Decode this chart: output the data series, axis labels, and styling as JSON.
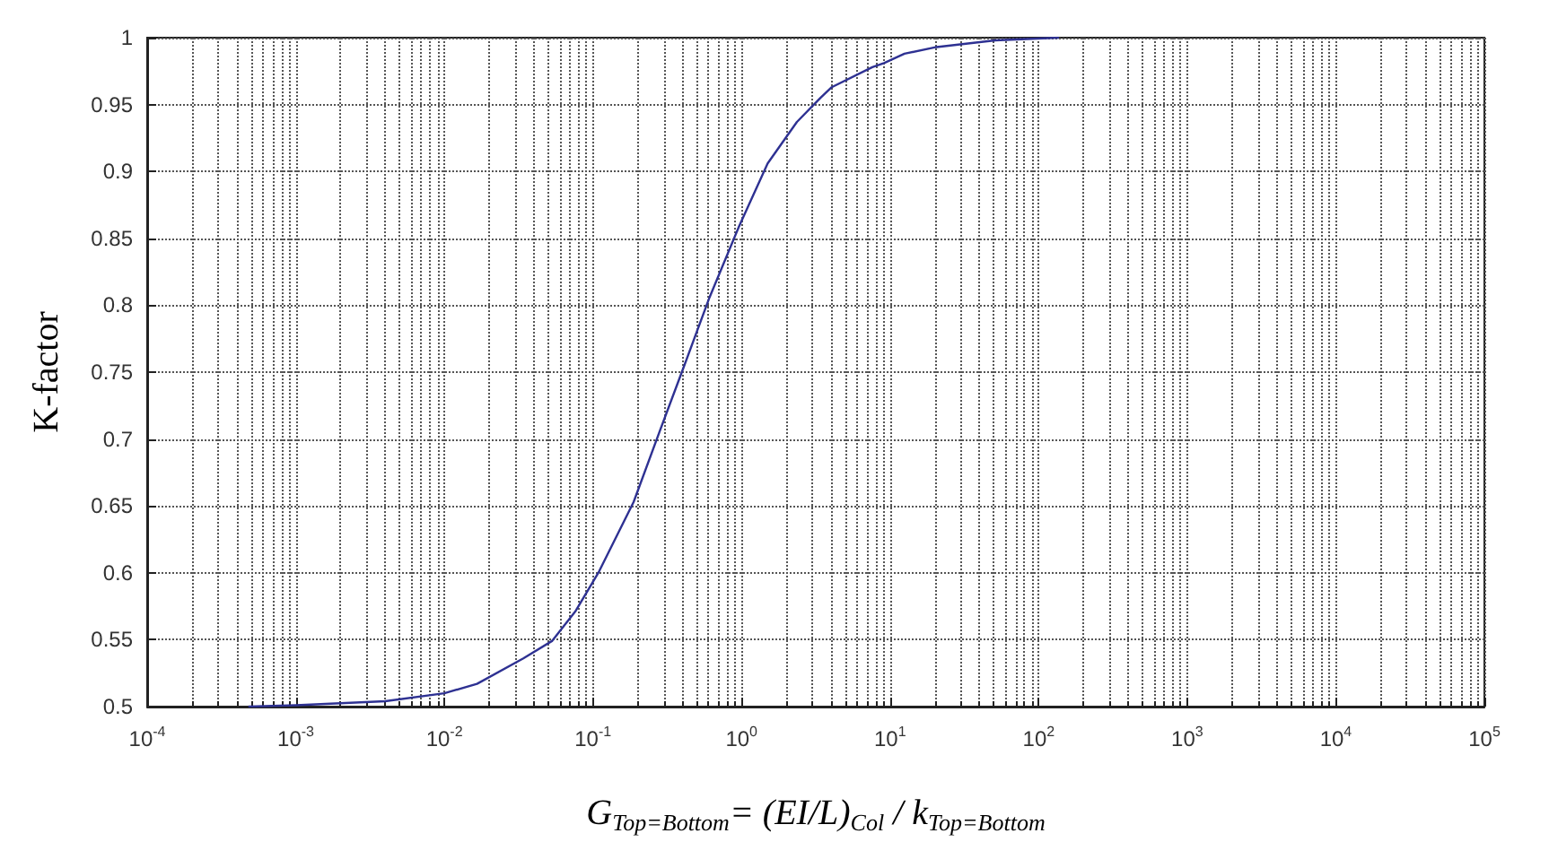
{
  "chart_data": {
    "type": "line",
    "xlabel": "G$_{Top=Bottom}$= (EI/L)$_{Col}$ / k$_{Top=Bottom}$",
    "ylabel": "K-factor",
    "log": "x",
    "grid": true,
    "line_style": "solid",
    "marker": "none",
    "xlim": [
      0.0001,
      100000
    ],
    "xticks": [
      {
        "value": 0.0001,
        "label": "10$^{-4}$"
      },
      {
        "value": 0.001,
        "label": "10$^{-3}$"
      },
      {
        "value": 0.01,
        "label": "10$^{-2}$"
      },
      {
        "value": 0.1,
        "label": "10$^{-1}$"
      },
      {
        "value": 1,
        "label": "10$^{0}$"
      },
      {
        "value": 10,
        "label": "10$^{1}$"
      },
      {
        "value": 100,
        "label": "10$^{2}$"
      },
      {
        "value": 1000,
        "label": "10$^{3}$"
      },
      {
        "value": 10000,
        "label": "10$^{4}$"
      },
      {
        "value": 100000,
        "label": "10$^{5}$"
      }
    ],
    "ylim": [
      0.5,
      1
    ],
    "yticks": [
      0.5,
      0.55,
      0.6,
      0.65,
      0.7,
      0.75,
      0.8,
      0.85,
      0.9,
      0.95,
      1
    ],
    "series": [
      {
        "color": "#2e3192",
        "x": [
          0.00048,
          0.001,
          0.004,
          0.01,
          0.0166,
          0.034,
          0.053,
          0.076,
          0.11,
          0.188,
          0.282,
          0.406,
          0.61,
          0.955,
          1.5,
          2.36,
          3.4,
          4.05,
          7.6,
          9.1,
          12.5,
          20.6,
          51,
          137
        ],
        "values": [
          0.5,
          0.501,
          0.504,
          0.51,
          0.517,
          0.536,
          0.549,
          0.571,
          0.601,
          0.653,
          0.706,
          0.753,
          0.806,
          0.858,
          0.906,
          0.937,
          0.955,
          0.963,
          0.978,
          0.981,
          0.988,
          0.993,
          0.998,
          1.0
        ]
      }
    ]
  }
}
